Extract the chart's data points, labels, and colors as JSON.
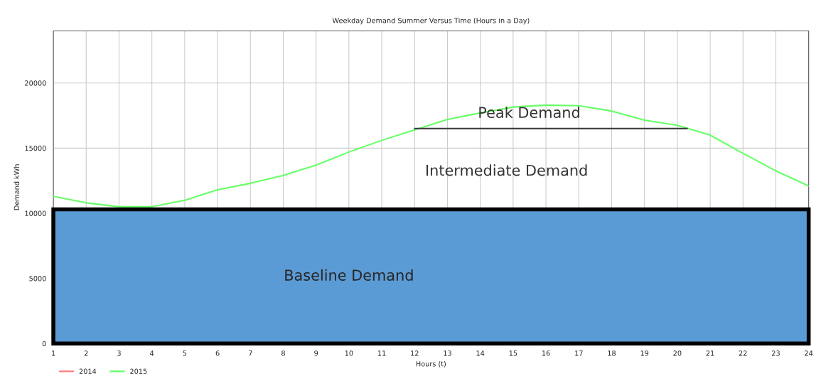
{
  "chart_data": {
    "type": "line",
    "title": "Weekday Demand Summer Versus Time (Hours in a Day)",
    "xlabel": "Hours (t)",
    "ylabel": "Demand kWh",
    "x": [
      1,
      2,
      3,
      4,
      5,
      6,
      7,
      8,
      9,
      10,
      11,
      12,
      13,
      14,
      15,
      16,
      17,
      18,
      19,
      20,
      21,
      22,
      23,
      24
    ],
    "series": [
      {
        "name": "2014",
        "color": "#ff8080",
        "values": [
          null,
          null,
          null,
          null,
          null,
          null,
          null,
          null,
          null,
          null,
          null,
          null,
          null,
          null,
          null,
          null,
          null,
          null,
          null,
          null,
          null,
          null,
          null,
          null
        ]
      },
      {
        "name": "2015",
        "color": "#66ff66",
        "values": [
          11300,
          10800,
          10500,
          10500,
          11000,
          11800,
          12300,
          12900,
          13700,
          14700,
          15600,
          16400,
          17200,
          17700,
          18150,
          18300,
          18250,
          17850,
          17150,
          16750,
          16000,
          14600,
          13250,
          12100
        ]
      },
      {
        "type": "line",
        "color": "#404040",
        "x": [
          12,
          20.3
        ],
        "values": [
          16500,
          16500
        ]
      }
    ],
    "bands": [
      {
        "axis": "y",
        "from": 0,
        "to": 10300,
        "label": "Baseline Demand",
        "color": "#5b9bd5"
      }
    ],
    "annotations": [
      "Peak Demand",
      "Intermediate Demand"
    ],
    "xlim": [
      1,
      24
    ],
    "xticks": [
      1,
      2,
      3,
      4,
      5,
      6,
      7,
      8,
      9,
      10,
      11,
      12,
      13,
      14,
      15,
      16,
      17,
      18,
      19,
      20,
      21,
      22,
      23,
      24
    ],
    "ylim": [
      0,
      24000
    ],
    "yticks": [
      0,
      5000,
      10000,
      15000,
      20000
    ],
    "grid": true,
    "legend": "bottom left"
  }
}
